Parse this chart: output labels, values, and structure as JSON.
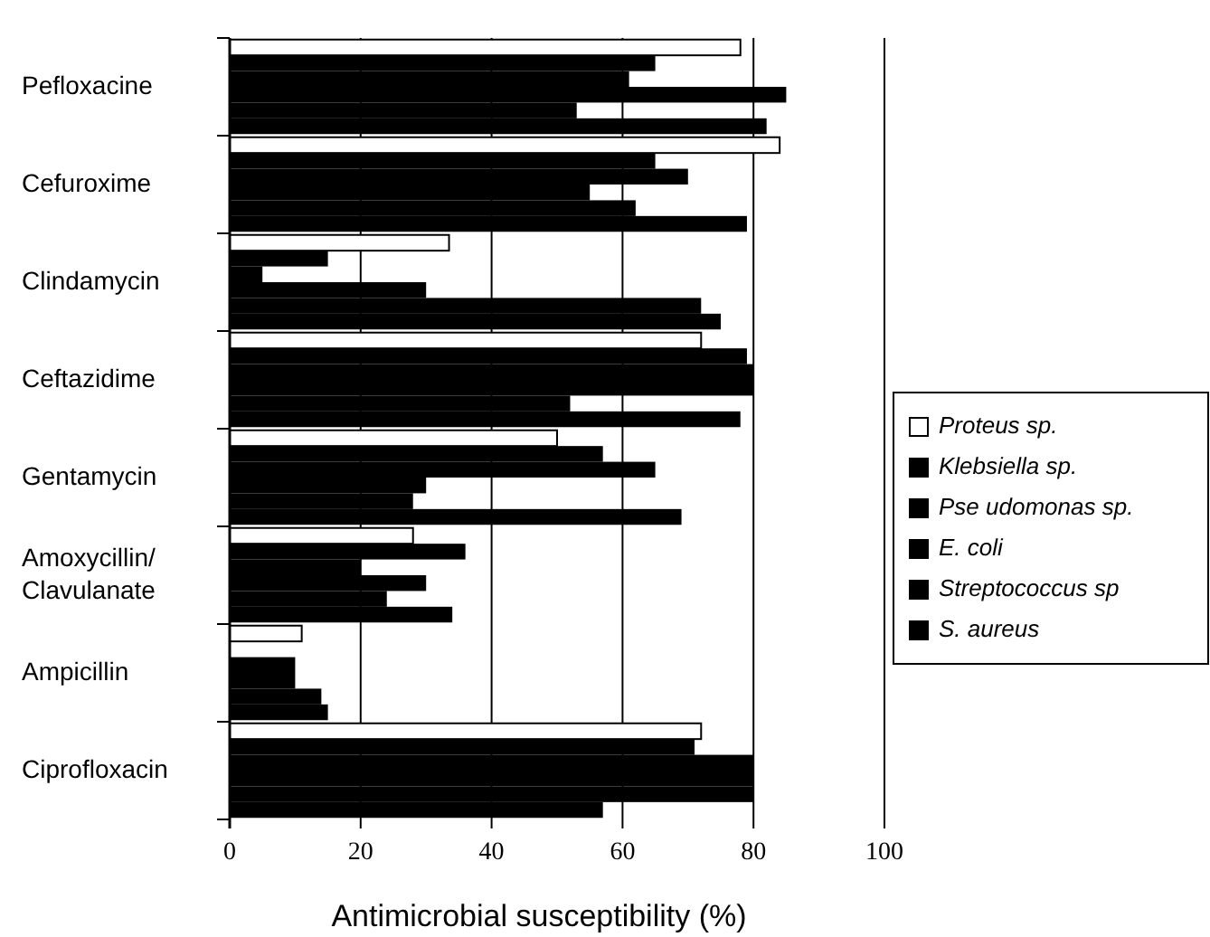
{
  "chart_data": {
    "type": "bar",
    "orientation": "horizontal",
    "xlabel": "Antimicrobial susceptibility (%)",
    "categories": [
      "Pefloxacine",
      "Cefuroxime",
      "Clindamycin",
      "Ceftazidime",
      "Gentamycin",
      "Amoxycillin/Clavulanate",
      "Ampicillin",
      "Ciprofloxacin"
    ],
    "series": [
      {
        "name": "Proteus sp.",
        "color": "#ffffff",
        "values": [
          78,
          84,
          33.5,
          72,
          50,
          28,
          11,
          72
        ]
      },
      {
        "name": "Klebsiella sp.",
        "color": "#000000",
        "values": [
          65,
          65,
          15,
          79,
          57,
          36,
          0,
          71
        ]
      },
      {
        "name": "Pse udomonas sp.",
        "color": "#000000",
        "values": [
          61,
          70,
          5,
          80,
          65,
          20,
          10,
          80
        ]
      },
      {
        "name": "E. coli",
        "color": "#000000",
        "values": [
          85,
          55,
          30,
          80,
          30,
          30,
          10,
          80
        ]
      },
      {
        "name": "Streptococcus sp",
        "color": "#000000",
        "values": [
          53,
          62,
          72,
          52,
          28,
          24,
          14,
          80
        ]
      },
      {
        "name": "S. aureus",
        "color": "#000000",
        "values": [
          82,
          79,
          75,
          78,
          69,
          34,
          15,
          57
        ]
      }
    ],
    "xlim": [
      0,
      100
    ],
    "xticks": [
      0,
      20,
      40,
      60,
      80,
      100
    ],
    "grid": "x",
    "legend": "right"
  }
}
